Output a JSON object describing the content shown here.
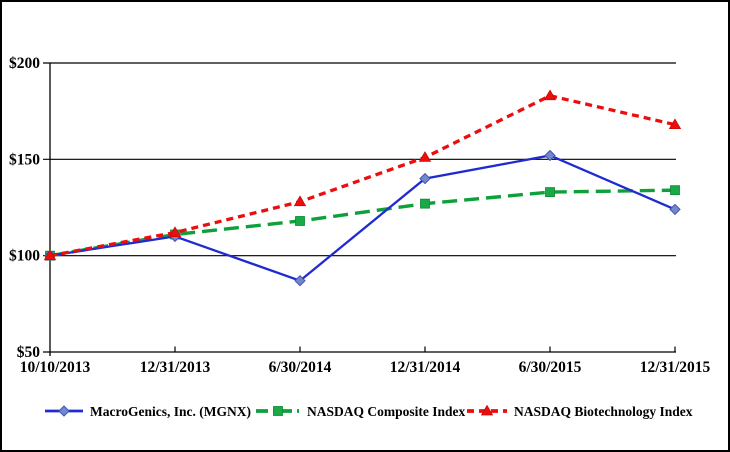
{
  "chart_data": {
    "type": "line",
    "title": "",
    "xlabel": "",
    "ylabel": "",
    "x_categories": [
      "10/10/2013",
      "12/31/2013",
      "6/30/2014",
      "12/31/2014",
      "6/30/2015",
      "12/31/2015"
    ],
    "y_ticks": [
      {
        "value": 200,
        "label": "$200"
      },
      {
        "value": 150,
        "label": "$150"
      },
      {
        "value": 100,
        "label": "$100"
      },
      {
        "value": 50,
        "label": "$50"
      }
    ],
    "ylim": [
      50,
      200
    ],
    "grid": true,
    "legend_position": "bottom",
    "series": [
      {
        "name": "NASDAQ Composite Index",
        "slug": "nasdaq-composite-index",
        "values": [
          100,
          111,
          118,
          127,
          133,
          134
        ],
        "line_style": "long-dash",
        "marker": "square",
        "color": "#0FA03C",
        "marker_color": "#19A946",
        "marker_edge": "#0B8A33",
        "line_width": 3.4,
        "legend_order": 1
      },
      {
        "name": "MacroGenics, Inc. (MGNX)",
        "slug": "macrogenics-mgnx",
        "values": [
          100,
          110,
          87,
          140,
          152,
          124
        ],
        "line_style": "solid",
        "marker": "diamond",
        "color": "#1F2BD0",
        "marker_color": "#7487CD",
        "marker_edge": "#3C55B5",
        "line_width": 2.3,
        "legend_order": 0
      },
      {
        "name": "NASDAQ Biotechnology Index",
        "slug": "nasdaq-biotechnology-index",
        "values": [
          100,
          112,
          128,
          151,
          183,
          168
        ],
        "line_style": "short-dash",
        "marker": "triangle",
        "color": "#EC0E0E",
        "marker_color": "#EC0E0E",
        "marker_edge": "#C90808",
        "line_width": 3.3,
        "legend_order": 2
      }
    ],
    "axis_color": "#000000",
    "grid_color": "#000000",
    "text_color": "#000000",
    "background_color": "#FFFFFF"
  }
}
